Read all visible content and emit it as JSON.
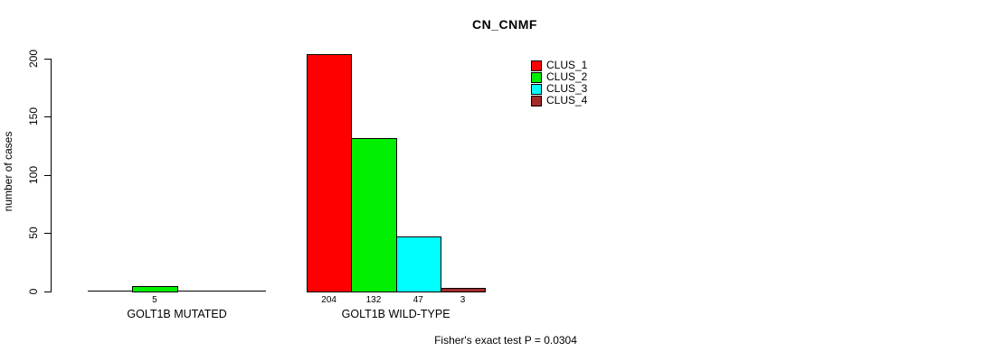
{
  "title": "CN_CNMF",
  "ylabel": "number of cases",
  "footer": "Fisher's exact test P = 0.0304",
  "chart_data": {
    "type": "bar",
    "title": "CN_CNMF",
    "xlabel": "",
    "ylabel": "number of cases",
    "ylim": [
      0,
      200
    ],
    "yticks": [
      0,
      50,
      100,
      150,
      200
    ],
    "grid": false,
    "legend_position": "top-right",
    "series": [
      {
        "name": "CLUS_1",
        "color": "#ff0000"
      },
      {
        "name": "CLUS_2",
        "color": "#00ee00"
      },
      {
        "name": "CLUS_3",
        "color": "#00ffff"
      },
      {
        "name": "CLUS_4",
        "color": "#a52a2a"
      }
    ],
    "groups": [
      {
        "label": "GOLT1B MUTATED",
        "values": [
          0,
          5,
          0,
          0
        ],
        "value_labels": [
          "",
          "5",
          "",
          ""
        ]
      },
      {
        "label": "GOLT1B WILD-TYPE",
        "values": [
          204,
          132,
          47,
          3
        ],
        "value_labels": [
          "204",
          "132",
          "47",
          "3"
        ]
      }
    ],
    "annotation": "Fisher's exact test P = 0.0304"
  }
}
